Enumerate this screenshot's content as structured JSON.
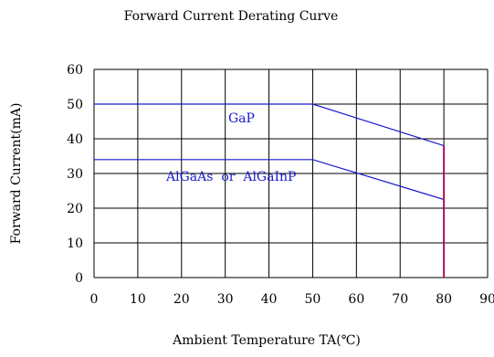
{
  "chart_data": {
    "type": "line",
    "title": "Forward Current Derating Curve",
    "xlabel": "Ambient Temperature TA(℃)",
    "ylabel": "Forward Current(mA)",
    "xlim": [
      0,
      90
    ],
    "ylim": [
      0,
      60
    ],
    "x_ticks": [
      "0",
      "10",
      "20",
      "30",
      "40",
      "50",
      "60",
      "70",
      "80",
      "90"
    ],
    "y_ticks": [
      "0",
      "10",
      "20",
      "30",
      "40",
      "50",
      "60"
    ],
    "grid": true,
    "series": [
      {
        "name": "GaP",
        "x": [
          0,
          50,
          80
        ],
        "y": [
          50,
          50,
          38
        ],
        "color": "#1a1acc"
      },
      {
        "name": "AlGaAs  or  AlGaInP",
        "x": [
          0,
          50,
          80
        ],
        "y": [
          34,
          34,
          22.5
        ],
        "color": "#1a1acc"
      }
    ],
    "vertical_marker": {
      "x": 80,
      "y_from": 0,
      "y_to": 38,
      "color": "#b0105a"
    }
  }
}
